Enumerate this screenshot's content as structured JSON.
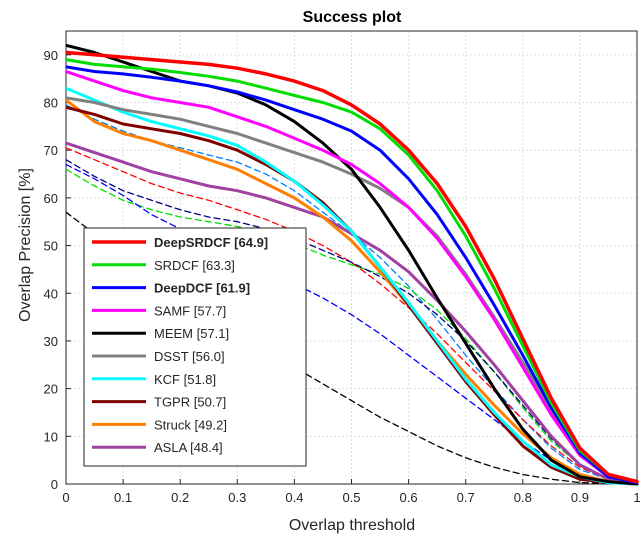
{
  "chart_data": {
    "type": "line",
    "title": "Success plot",
    "xlabel": "Overlap threshold",
    "ylabel": "Overlap Precision [%]",
    "xlim": [
      0,
      1
    ],
    "ylim": [
      0,
      95
    ],
    "x_ticks": [
      "0",
      "0.1",
      "0.2",
      "0.3",
      "0.4",
      "0.5",
      "0.6",
      "0.7",
      "0.8",
      "0.9",
      "1"
    ],
    "y_ticks": [
      "0",
      "10",
      "20",
      "30",
      "40",
      "50",
      "60",
      "70",
      "80",
      "90"
    ],
    "grid": true,
    "legend_position": "bottom-left",
    "x": [
      0,
      0.05,
      0.1,
      0.15,
      0.2,
      0.25,
      0.3,
      0.35,
      0.4,
      0.45,
      0.5,
      0.55,
      0.6,
      0.65,
      0.7,
      0.75,
      0.8,
      0.85,
      0.9,
      0.95,
      1
    ],
    "series": [
      {
        "name": "DeepSRDCF [64.9]",
        "label_bold": true,
        "color": "#ff0000",
        "width": 3.5,
        "dash": false,
        "values": [
          90.5,
          90,
          89.5,
          89,
          88.5,
          88,
          87.2,
          86,
          84.5,
          82.5,
          79.5,
          75.5,
          70,
          63,
          54,
          43,
          30.5,
          18,
          7.5,
          2,
          0.5
        ]
      },
      {
        "name": "SRDCF [63.3]",
        "label_bold": false,
        "color": "#00dd00",
        "width": 3,
        "dash": false,
        "values": [
          89,
          88,
          87.5,
          87,
          86.3,
          85.5,
          84.5,
          83,
          81.5,
          80,
          78,
          74.5,
          69,
          61.5,
          52,
          41,
          29,
          17,
          7,
          2,
          0.5
        ]
      },
      {
        "name": "DeepDCF [61.9]",
        "label_bold": true,
        "color": "#0000ff",
        "width": 3,
        "dash": false,
        "values": [
          87.5,
          86.5,
          86,
          85.3,
          84.5,
          83.5,
          82.2,
          80.5,
          78.5,
          76.5,
          74,
          70,
          64,
          56.5,
          47.5,
          37.5,
          27,
          16,
          6.5,
          1.5,
          0.3
        ]
      },
      {
        "name": "SAMF [57.7]",
        "label_bold": false,
        "color": "#ff00ff",
        "width": 3,
        "dash": false,
        "values": [
          86.5,
          84.5,
          82.5,
          81,
          80,
          79,
          77,
          75,
          72.5,
          70,
          67,
          63,
          58,
          51.5,
          43.5,
          34.5,
          24.5,
          14.5,
          6,
          1.5,
          0.3
        ]
      },
      {
        "name": "MEEM [57.1]",
        "label_bold": false,
        "color": "#000000",
        "width": 3,
        "dash": false,
        "values": [
          92,
          90.5,
          88.5,
          86.5,
          84.5,
          83.5,
          82,
          79.5,
          76,
          71.5,
          66,
          58,
          49,
          39,
          29.5,
          20,
          11.5,
          5,
          1.5,
          0.5,
          0
        ]
      },
      {
        "name": "DSST [56.0]",
        "label_bold": false,
        "color": "#808080",
        "width": 3,
        "dash": false,
        "values": [
          81,
          80,
          78.5,
          77.5,
          76.5,
          75,
          73.5,
          71.5,
          69.5,
          67.5,
          65,
          62,
          58,
          52,
          44,
          35,
          25.5,
          15.5,
          7,
          2,
          0.5
        ]
      },
      {
        "name": "KCF [51.8]",
        "label_bold": false,
        "color": "#00ffff",
        "width": 3,
        "dash": false,
        "values": [
          83,
          80.5,
          78,
          76,
          74.5,
          73,
          71,
          67.5,
          63.5,
          58.5,
          53,
          45.5,
          38,
          30,
          22,
          15,
          9,
          4,
          1.5,
          0.3,
          0
        ]
      },
      {
        "name": "TGPR [50.7]",
        "label_bold": false,
        "color": "#800000",
        "width": 3,
        "dash": false,
        "values": [
          79,
          77.5,
          75.5,
          74.5,
          73.5,
          72,
          70,
          67,
          63.5,
          59,
          53,
          45.5,
          37.5,
          29.5,
          21.5,
          14.5,
          8,
          3.5,
          1,
          0.3,
          0
        ]
      },
      {
        "name": "Struck [49.2]",
        "label_bold": false,
        "color": "#ff8000",
        "width": 3,
        "dash": false,
        "values": [
          80.5,
          76,
          73.5,
          72,
          70,
          68,
          66,
          63,
          60,
          56,
          51,
          44.5,
          37.5,
          30,
          23,
          16.5,
          10.5,
          5.5,
          2,
          0.5,
          0
        ]
      },
      {
        "name": "ASLA [48.4]",
        "label_bold": false,
        "color": "#a040a0",
        "width": 3,
        "dash": false,
        "values": [
          71.5,
          69.5,
          67.5,
          65.5,
          64,
          62.5,
          61.5,
          60,
          58,
          56,
          52.5,
          49,
          44.5,
          38.5,
          32,
          25,
          17.5,
          10,
          4,
          1,
          0.2
        ]
      },
      {
        "name": "",
        "label_bold": false,
        "color": "#0080ff",
        "width": 1.3,
        "dash": true,
        "values": [
          79.5,
          76.5,
          74,
          72,
          70.5,
          69,
          67.5,
          65,
          61.5,
          57,
          52.5,
          47.5,
          41.5,
          34.5,
          27,
          20,
          13.5,
          7.5,
          3,
          1,
          0.2
        ]
      },
      {
        "name": "",
        "label_bold": false,
        "color": "#ff0000",
        "width": 1.3,
        "dash": true,
        "values": [
          70.5,
          68,
          65.5,
          63,
          61,
          59.5,
          57.5,
          55.5,
          53,
          50,
          46.5,
          42,
          37,
          31.5,
          25.5,
          19.5,
          13.5,
          8,
          3.5,
          1,
          0.2
        ]
      },
      {
        "name": "",
        "label_bold": false,
        "color": "#00dd00",
        "width": 1.3,
        "dash": true,
        "values": [
          66,
          62.5,
          59.5,
          57.5,
          56,
          55,
          54,
          52.5,
          50.5,
          48,
          46,
          44,
          41,
          36.5,
          30.5,
          23.5,
          16,
          9,
          4,
          1,
          0.2
        ]
      },
      {
        "name": "",
        "label_bold": false,
        "color": "#000080",
        "width": 1.3,
        "dash": true,
        "values": [
          68,
          64.5,
          61.5,
          59.5,
          57.5,
          56,
          55,
          53.5,
          51.5,
          49,
          46.5,
          43.5,
          40,
          35.5,
          30,
          23.5,
          16.5,
          9.5,
          4,
          1,
          0.2
        ]
      },
      {
        "name": "",
        "label_bold": false,
        "color": "#0000ff",
        "width": 1.3,
        "dash": true,
        "values": [
          67,
          64,
          60.5,
          56.5,
          53.5,
          50.5,
          48,
          45,
          42,
          39,
          35.5,
          31.5,
          27,
          22.5,
          18,
          13.5,
          9,
          5,
          2,
          0.5,
          0.1
        ]
      },
      {
        "name": "",
        "label_bold": false,
        "color": "#000000",
        "width": 1.3,
        "dash": true,
        "values": [
          57,
          52.5,
          48,
          43.5,
          39.5,
          35.5,
          32,
          28.5,
          24.5,
          21,
          17.5,
          14,
          11,
          8,
          5.5,
          3.5,
          2,
          1,
          0.3,
          0.1,
          0
        ]
      }
    ]
  }
}
